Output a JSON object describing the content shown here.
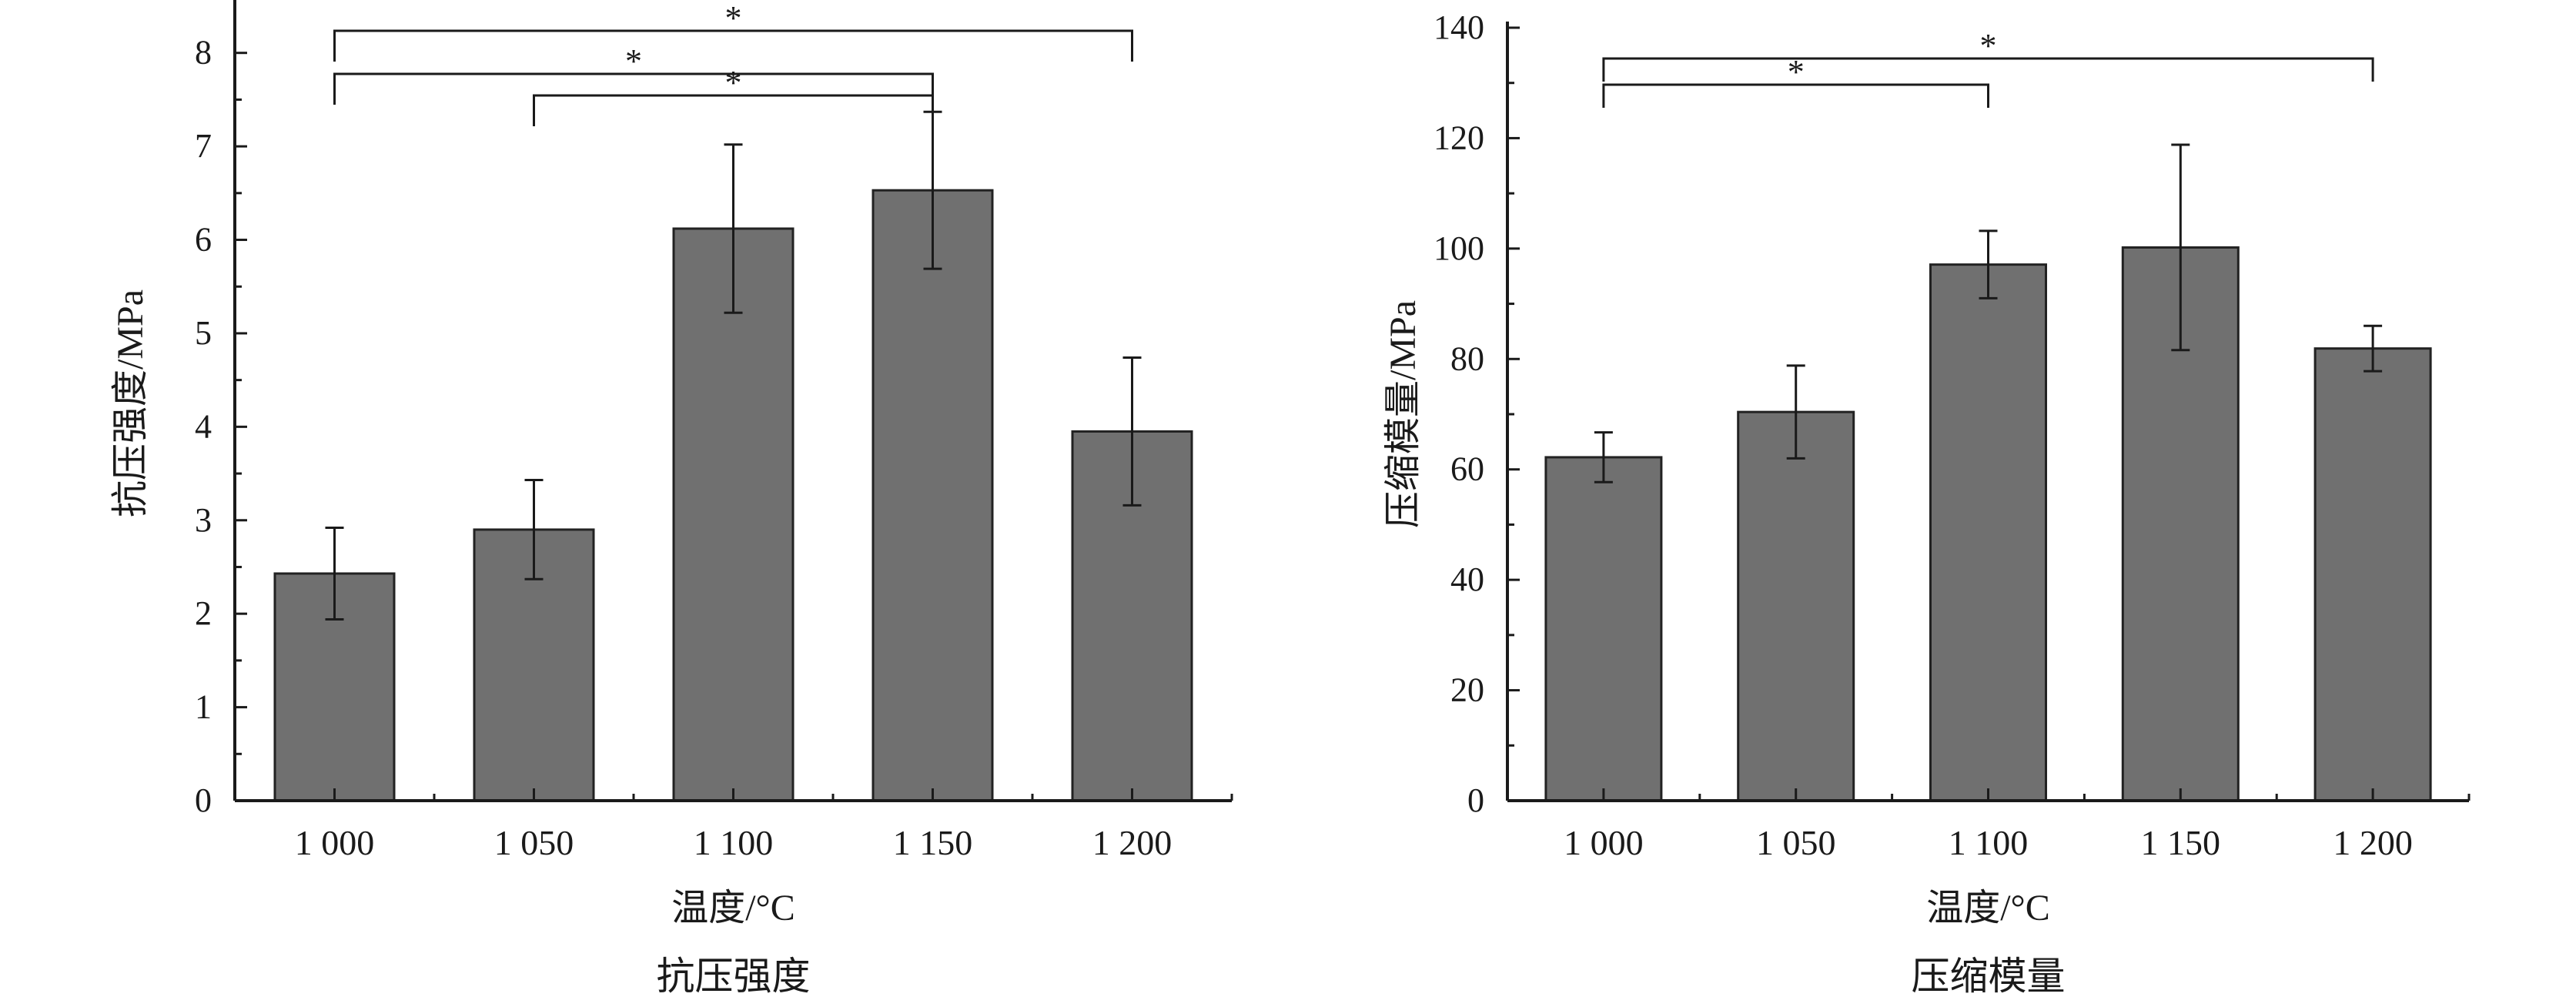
{
  "colors": {
    "bar_fill": "#707070",
    "bar_stroke": "#222222",
    "axis": "#1a1a1a",
    "text": "#1a1a1a"
  },
  "chart_data": [
    {
      "type": "bar",
      "title": "抗压强度",
      "xlabel": "温度/°C",
      "ylabel": "抗压强度/MPa",
      "categories": [
        "1 000",
        "1 050",
        "1 100",
        "1 150",
        "1 200"
      ],
      "values": [
        2.43,
        2.9,
        6.12,
        6.53,
        3.95
      ],
      "error": [
        0.49,
        0.53,
        0.9,
        0.84,
        0.79
      ],
      "ylim": [
        0,
        8.5
      ],
      "yticks": [
        0,
        1,
        2,
        3,
        4,
        5,
        6,
        7,
        8
      ],
      "grid": false,
      "significance": [
        {
          "from": "1 000",
          "to": "1 200",
          "label": "*"
        },
        {
          "from": "1 000",
          "to": "1 150",
          "label": "*"
        },
        {
          "from": "1 050",
          "to": "1 150",
          "label": "*"
        }
      ]
    },
    {
      "type": "bar",
      "title": "压缩模量",
      "xlabel": "温度/°C",
      "ylabel": "压缩模量/MPa",
      "categories": [
        "1 000",
        "1 050",
        "1 100",
        "1 150",
        "1 200"
      ],
      "values": [
        62.2,
        70.4,
        97.1,
        100.2,
        81.9
      ],
      "error": [
        4.5,
        8.4,
        6.1,
        18.6,
        4.1
      ],
      "ylim": [
        0,
        140
      ],
      "yticks": [
        0,
        20,
        40,
        60,
        80,
        100,
        120,
        140
      ],
      "grid": false,
      "significance": [
        {
          "from": "1 000",
          "to": "1 200",
          "label": "*"
        },
        {
          "from": "1 000",
          "to": "1 100",
          "label": "*"
        }
      ]
    }
  ]
}
